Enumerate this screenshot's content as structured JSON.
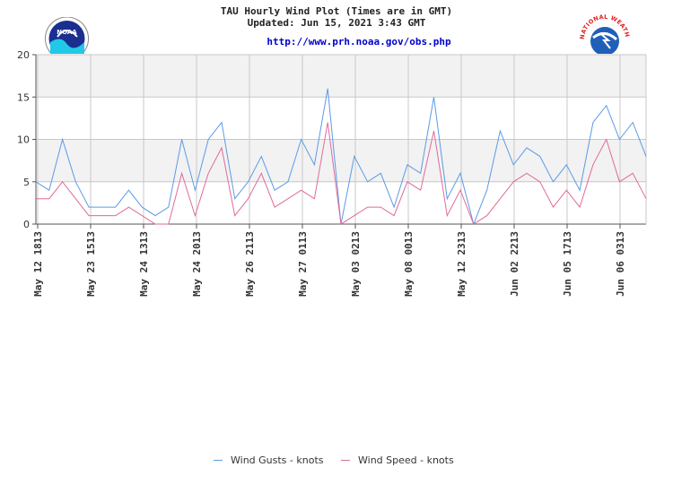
{
  "header": {
    "title": "TAU Hourly Wind Plot (Times are in GMT)",
    "updated": "Updated: Jun 15, 2021 3:43 GMT",
    "url": "http://www.prh.noaa.gov/obs.php",
    "noaa_logo_text": "NOAA",
    "nws_logo_text": "NATIONAL WEATHER SERVICE"
  },
  "colors": {
    "gusts": "#5b9be6",
    "speed": "#e06a9a",
    "band": "#f2f2f2",
    "grid": "#c8c8c8",
    "axis": "#555555"
  },
  "chart_data": {
    "type": "line",
    "title": "TAU Hourly Wind Plot (Times are in GMT)",
    "ylim": [
      0,
      20
    ],
    "yticks": [
      0,
      5,
      10,
      15,
      20
    ],
    "grid": true,
    "legend_position": "bottom",
    "xtick_labels": [
      "May 12 1813",
      "May 23 1513",
      "May 24 1313",
      "May 24 2013",
      "May 26 2113",
      "May 27 0113",
      "May 03 0213",
      "May 08 0013",
      "May 12 2313",
      "Jun 02 2213",
      "Jun 05 1713",
      "Jun 06 0313"
    ],
    "series": [
      {
        "name": "Wind Gusts - knots",
        "values": [
          5,
          4,
          10,
          5,
          2,
          2,
          2,
          4,
          2,
          1,
          2,
          10,
          4,
          10,
          12,
          3,
          5,
          8,
          4,
          5,
          10,
          7,
          16,
          0,
          8,
          5,
          6,
          2,
          7,
          6,
          15,
          3,
          6,
          0,
          4,
          11,
          7,
          9,
          8,
          5,
          7,
          4,
          12,
          14,
          10,
          12,
          8
        ]
      },
      {
        "name": "Wind Speed - knots",
        "values": [
          3,
          3,
          5,
          3,
          1,
          1,
          1,
          2,
          1,
          0,
          0,
          6,
          1,
          6,
          9,
          1,
          3,
          6,
          2,
          3,
          4,
          3,
          12,
          0,
          1,
          2,
          2,
          1,
          5,
          4,
          11,
          1,
          4,
          0,
          1,
          3,
          5,
          6,
          5,
          2,
          4,
          2,
          7,
          10,
          5,
          6,
          3
        ]
      }
    ]
  }
}
